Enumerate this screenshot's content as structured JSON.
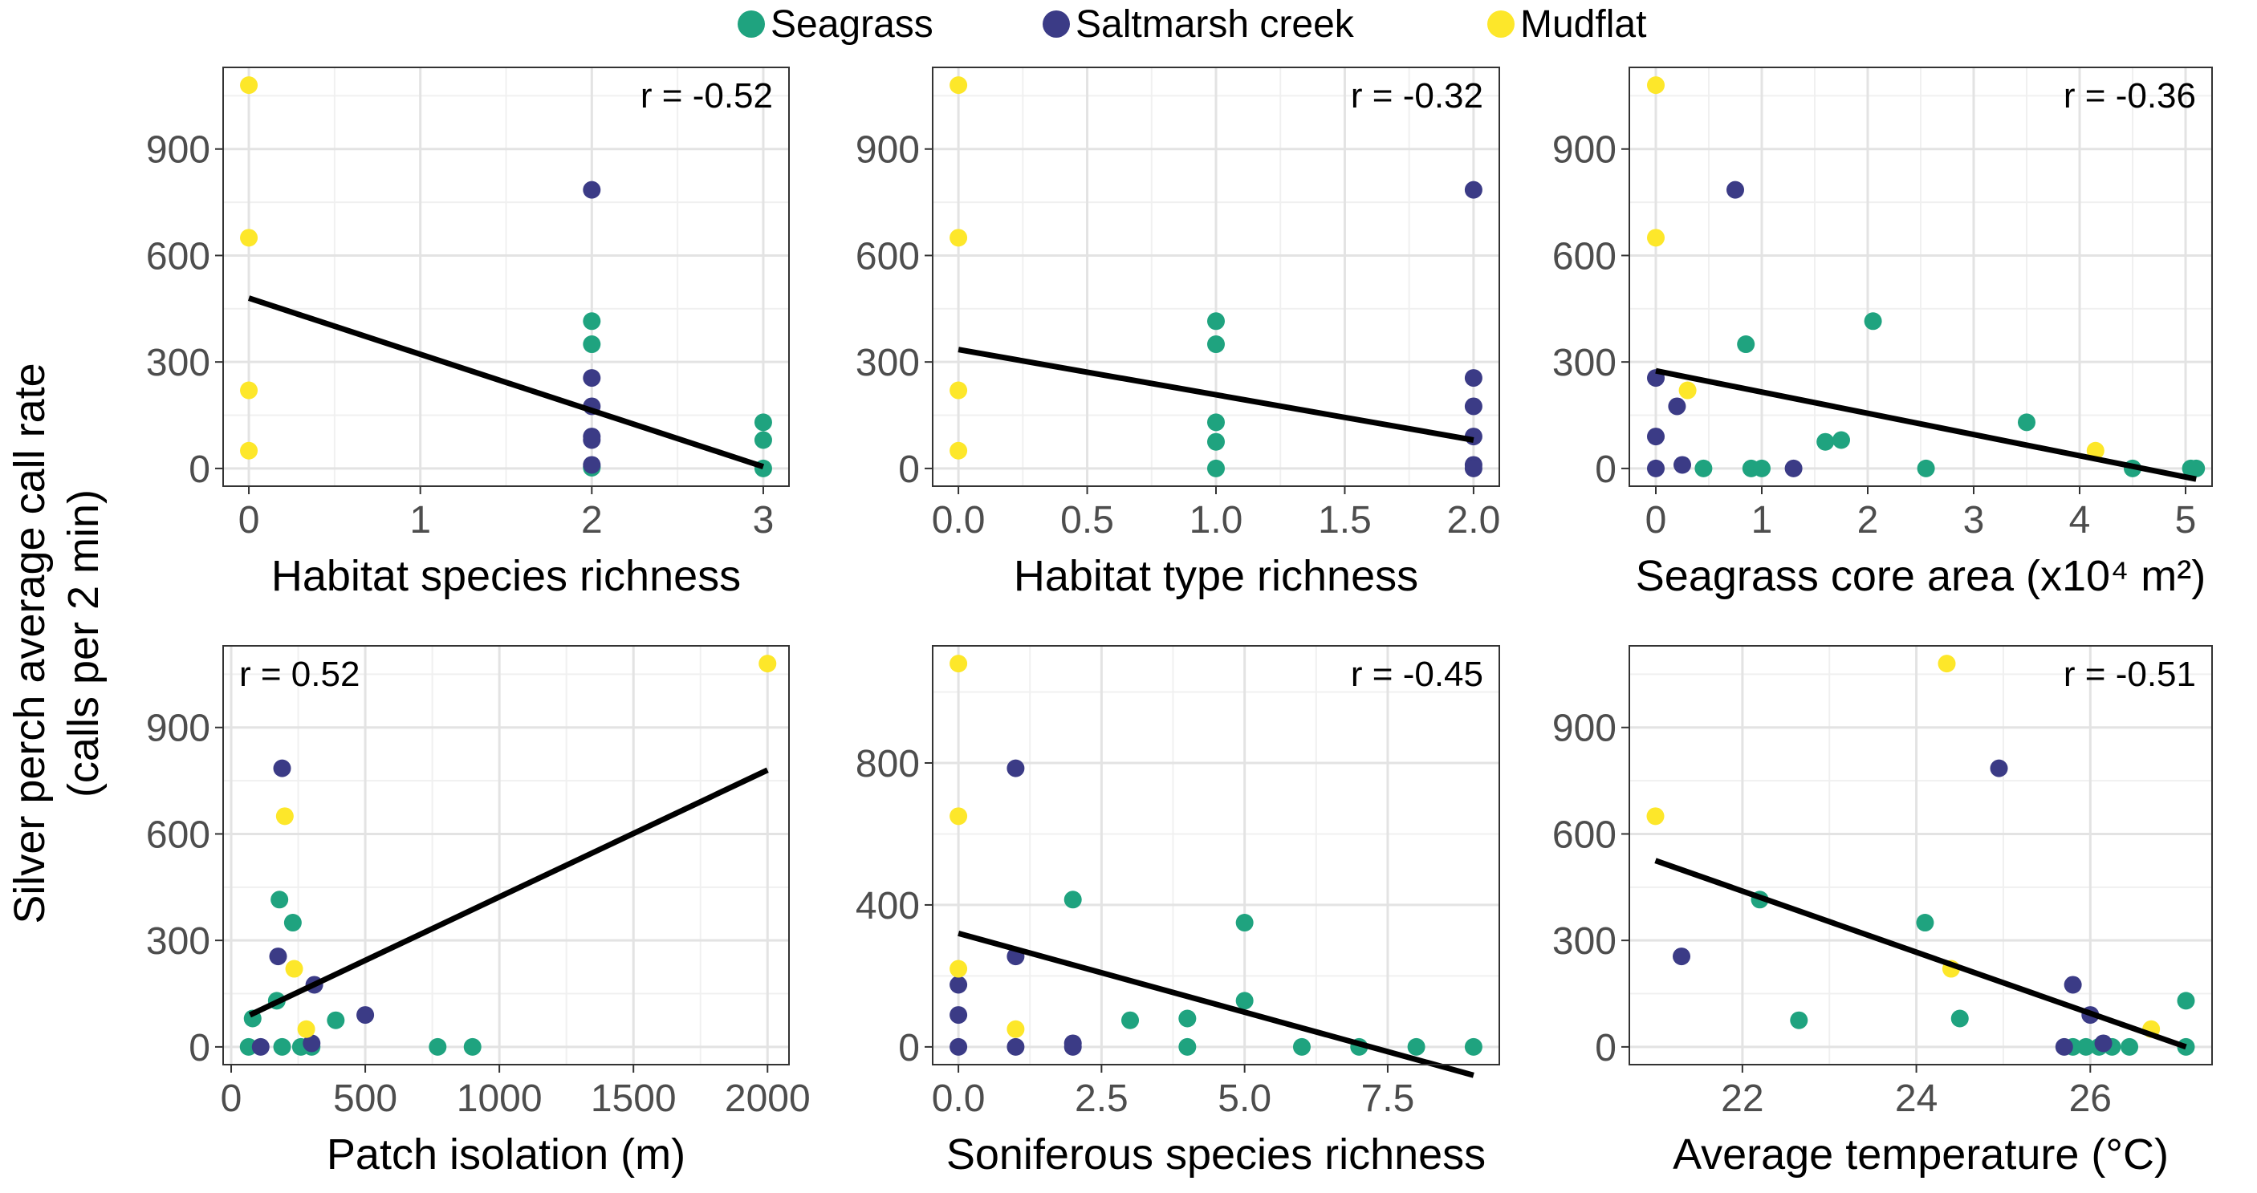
{
  "figure": {
    "ylabel_line1": "Silver perch average call rate",
    "ylabel_line2": "(calls per 2 min)"
  },
  "legend": [
    {
      "label": "Seagrass",
      "color": "#1FA37F"
    },
    {
      "label": "Saltmarsh creek",
      "color": "#3B3B86"
    },
    {
      "label": "Mudflat",
      "color": "#FDE72A"
    }
  ],
  "colors": {
    "Seagrass": "#1FA37F",
    "Saltmarsh creek": "#3B3B86",
    "Mudflat": "#FDE72A",
    "fit": "#000000"
  },
  "chart_data": [
    {
      "type": "scatter",
      "xlabel": "Habitat species richness",
      "annotation": "r = -0.52",
      "annotation_position": "top-right",
      "xlim": [
        -0.15,
        3.15
      ],
      "ylim": [
        -50,
        1130
      ],
      "xticks": [
        0,
        1,
        2,
        3
      ],
      "xtick_labels": [
        "0",
        "1",
        "2",
        "3"
      ],
      "yticks": [
        0,
        300,
        600,
        900
      ],
      "ytick_labels": [
        "0",
        "300",
        "600",
        "900"
      ],
      "fit": {
        "x": [
          0,
          3
        ],
        "y": [
          480,
          5
        ]
      },
      "series": [
        {
          "name": "Seagrass",
          "x": [
            2,
            2,
            2,
            2,
            3,
            3,
            3
          ],
          "y": [
            415,
            350,
            5,
            2,
            130,
            80,
            0
          ]
        },
        {
          "name": "Saltmarsh creek",
          "x": [
            2,
            2,
            2,
            2,
            2,
            2
          ],
          "y": [
            785,
            255,
            175,
            90,
            80,
            10
          ]
        },
        {
          "name": "Mudflat",
          "x": [
            0,
            0,
            0,
            0
          ],
          "y": [
            1080,
            650,
            220,
            50
          ]
        }
      ]
    },
    {
      "type": "scatter",
      "xlabel": "Habitat type richness",
      "annotation": "r = -0.32",
      "annotation_position": "top-right",
      "xlim": [
        -0.1,
        2.1
      ],
      "ylim": [
        -50,
        1130
      ],
      "xticks": [
        0,
        0.5,
        1,
        1.5,
        2
      ],
      "xtick_labels": [
        "0.0",
        "0.5",
        "1.0",
        "1.5",
        "2.0"
      ],
      "yticks": [
        0,
        300,
        600,
        900
      ],
      "ytick_labels": [
        "0",
        "300",
        "600",
        "900"
      ],
      "fit": {
        "x": [
          0,
          2
        ],
        "y": [
          335,
          80
        ]
      },
      "series": [
        {
          "name": "Seagrass",
          "x": [
            1,
            1,
            1,
            1,
            1
          ],
          "y": [
            415,
            350,
            130,
            75,
            0
          ]
        },
        {
          "name": "Saltmarsh creek",
          "x": [
            2,
            2,
            2,
            2,
            2,
            2
          ],
          "y": [
            785,
            255,
            175,
            90,
            10,
            0
          ]
        },
        {
          "name": "Mudflat",
          "x": [
            0,
            0,
            0,
            0
          ],
          "y": [
            1080,
            650,
            220,
            50
          ]
        }
      ]
    },
    {
      "type": "scatter",
      "xlabel": "Seagrass core area (x10⁴ m²)",
      "annotation": "r = -0.36",
      "annotation_position": "top-right",
      "xlim": [
        -0.25,
        5.25
      ],
      "ylim": [
        -50,
        1130
      ],
      "xticks": [
        0,
        1,
        2,
        3,
        4,
        5
      ],
      "xtick_labels": [
        "0",
        "1",
        "2",
        "3",
        "4",
        "5"
      ],
      "yticks": [
        0,
        300,
        600,
        900
      ],
      "ytick_labels": [
        "0",
        "300",
        "600",
        "900"
      ],
      "fit": {
        "x": [
          0,
          5.1
        ],
        "y": [
          275,
          -30
        ]
      },
      "series": [
        {
          "name": "Seagrass",
          "x": [
            0.45,
            0.85,
            0.9,
            1.0,
            1.6,
            1.75,
            2.05,
            2.55,
            3.5,
            4.5,
            5.05,
            5.1
          ],
          "y": [
            0,
            350,
            0,
            0,
            75,
            80,
            415,
            0,
            130,
            0,
            0,
            0
          ]
        },
        {
          "name": "Saltmarsh creek",
          "x": [
            0,
            0,
            0,
            0.2,
            0.25,
            0.75,
            1.3
          ],
          "y": [
            255,
            90,
            0,
            175,
            10,
            785,
            0
          ]
        },
        {
          "name": "Mudflat",
          "x": [
            0,
            0,
            0.3,
            4.15
          ],
          "y": [
            1080,
            650,
            220,
            50
          ]
        }
      ]
    },
    {
      "type": "scatter",
      "xlabel": "Patch isolation (m)",
      "annotation": "r = 0.52",
      "annotation_position": "top-left",
      "xlim": [
        -30,
        2080
      ],
      "ylim": [
        -50,
        1130
      ],
      "xticks": [
        0,
        500,
        1000,
        1500,
        2000
      ],
      "xtick_labels": [
        "0",
        "500",
        "1000",
        "1500",
        "2000"
      ],
      "yticks": [
        0,
        300,
        600,
        900
      ],
      "ytick_labels": [
        "0",
        "300",
        "600",
        "900"
      ],
      "fit": {
        "x": [
          70,
          2000
        ],
        "y": [
          90,
          780
        ]
      },
      "series": [
        {
          "name": "Seagrass",
          "x": [
            65,
            80,
            170,
            180,
            190,
            230,
            260,
            300,
            390,
            770,
            900
          ],
          "y": [
            0,
            80,
            130,
            415,
            0,
            350,
            0,
            0,
            75,
            0,
            0
          ]
        },
        {
          "name": "Saltmarsh creek",
          "x": [
            110,
            175,
            190,
            300,
            310,
            500
          ],
          "y": [
            0,
            255,
            785,
            10,
            175,
            90
          ]
        },
        {
          "name": "Mudflat",
          "x": [
            200,
            235,
            280,
            2000
          ],
          "y": [
            650,
            220,
            50,
            1080
          ]
        }
      ]
    },
    {
      "type": "scatter",
      "xlabel": "Soniferous species richness",
      "annotation": "r = -0.45",
      "annotation_position": "top-right",
      "xlim": [
        -0.45,
        9.45
      ],
      "ylim": [
        -50,
        1130
      ],
      "xticks": [
        0,
        2.5,
        5,
        7.5
      ],
      "xtick_labels": [
        "0.0",
        "2.5",
        "5.0",
        "7.5"
      ],
      "yticks": [
        0,
        400,
        800
      ],
      "ytick_labels": [
        "0",
        "400",
        "800"
      ],
      "fit": {
        "x": [
          0,
          9
        ],
        "y": [
          320,
          -80
        ]
      },
      "series": [
        {
          "name": "Seagrass",
          "x": [
            2,
            3,
            4,
            4,
            5,
            5,
            6,
            7,
            8,
            9
          ],
          "y": [
            415,
            75,
            80,
            0,
            350,
            130,
            0,
            0,
            0,
            0
          ]
        },
        {
          "name": "Saltmarsh creek",
          "x": [
            0,
            0,
            0,
            1,
            1,
            1,
            2,
            2
          ],
          "y": [
            175,
            90,
            0,
            785,
            255,
            0,
            10,
            0
          ]
        },
        {
          "name": "Mudflat",
          "x": [
            0,
            0,
            0,
            1
          ],
          "y": [
            1080,
            650,
            220,
            50
          ]
        }
      ]
    },
    {
      "type": "scatter",
      "xlabel": "Average temperature (°C)",
      "annotation": "r = -0.51",
      "annotation_position": "top-right",
      "xlim": [
        20.7,
        27.4
      ],
      "ylim": [
        -50,
        1130
      ],
      "xticks": [
        22,
        24,
        26
      ],
      "xtick_labels": [
        "22",
        "24",
        "26"
      ],
      "yticks": [
        0,
        300,
        600,
        900
      ],
      "ytick_labels": [
        "0",
        "300",
        "600",
        "900"
      ],
      "fit": {
        "x": [
          21.0,
          27.1
        ],
        "y": [
          525,
          0
        ]
      },
      "series": [
        {
          "name": "Seagrass",
          "x": [
            22.2,
            22.65,
            24.1,
            24.5,
            25.8,
            25.95,
            26.1,
            26.25,
            26.45,
            27.1,
            27.1
          ],
          "y": [
            415,
            75,
            350,
            80,
            0,
            0,
            0,
            0,
            0,
            130,
            0
          ]
        },
        {
          "name": "Saltmarsh creek",
          "x": [
            21.3,
            24.95,
            25.7,
            25.8,
            26.0,
            26.15
          ],
          "y": [
            255,
            785,
            0,
            175,
            90,
            10
          ]
        },
        {
          "name": "Mudflat",
          "x": [
            21.0,
            24.35,
            24.4,
            26.7
          ],
          "y": [
            650,
            1080,
            220,
            50
          ]
        }
      ]
    }
  ]
}
